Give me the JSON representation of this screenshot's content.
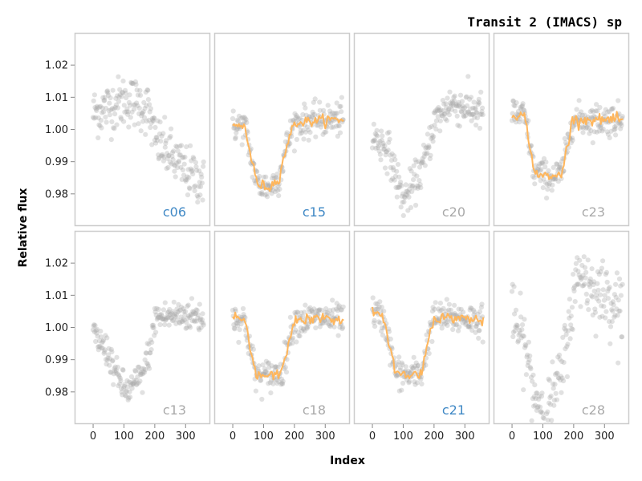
{
  "chart_data": {
    "type": "scatter",
    "title": "Transit 2 (IMACS) sp",
    "xlabel": "Index",
    "ylabel": "Relative flux",
    "xlim": [
      -60,
      380
    ],
    "ylim": [
      0.97,
      1.03
    ],
    "xticks": [
      0,
      100,
      200,
      300
    ],
    "yticks": [
      0.98,
      0.99,
      1.0,
      1.01,
      1.02
    ],
    "x_tick_labels": [
      "0",
      "100",
      "200",
      "300"
    ],
    "y_tick_labels": [
      "0.98",
      "0.99",
      "1.00",
      "1.01",
      "1.02"
    ],
    "layout": "2x4 grid of small multiples, shared axes",
    "colors": {
      "points": "#a9a9a9",
      "model_line": "#ffb65c",
      "label_highlight": "#3f88c5",
      "label_muted": "#a9a9a9",
      "panel_border": "#cccccc"
    },
    "panels": [
      {
        "label": "c06",
        "highlight": true,
        "model": false,
        "trend": [
          [
            0,
            1.005
          ],
          [
            50,
            1.007
          ],
          [
            100,
            1.009
          ],
          [
            150,
            1.008
          ],
          [
            180,
            1.006
          ],
          [
            200,
            0.997
          ],
          [
            250,
            0.992
          ],
          [
            300,
            0.987
          ],
          [
            360,
            0.984
          ]
        ],
        "scatter": 0.004
      },
      {
        "label": "c15",
        "highlight": true,
        "model": true,
        "trend": [
          [
            0,
            1.001
          ],
          [
            40,
            1.001
          ],
          [
            55,
            0.993
          ],
          [
            80,
            0.983
          ],
          [
            120,
            0.982
          ],
          [
            150,
            0.985
          ],
          [
            175,
            0.995
          ],
          [
            200,
            1.002
          ],
          [
            300,
            1.003
          ],
          [
            360,
            1.003
          ]
        ],
        "scatter": 0.0025
      },
      {
        "label": "c20",
        "highlight": false,
        "model": false,
        "trend": [
          [
            0,
            0.998
          ],
          [
            50,
            0.994
          ],
          [
            100,
            0.978
          ],
          [
            130,
            0.982
          ],
          [
            170,
            0.99
          ],
          [
            200,
            1.002
          ],
          [
            250,
            1.008
          ],
          [
            300,
            1.007
          ],
          [
            360,
            1.005
          ]
        ],
        "scatter": 0.003
      },
      {
        "label": "c23",
        "highlight": false,
        "model": true,
        "trend": [
          [
            0,
            1.005
          ],
          [
            40,
            1.004
          ],
          [
            55,
            0.997
          ],
          [
            70,
            0.987
          ],
          [
            120,
            0.985
          ],
          [
            160,
            0.986
          ],
          [
            180,
            0.995
          ],
          [
            195,
            1.003
          ],
          [
            300,
            1.003
          ],
          [
            360,
            1.003
          ]
        ],
        "scatter": 0.0025
      },
      {
        "label": "c13",
        "highlight": false,
        "model": false,
        "trend": [
          [
            0,
            0.998
          ],
          [
            50,
            0.992
          ],
          [
            80,
            0.984
          ],
          [
            110,
            0.98
          ],
          [
            160,
            0.985
          ],
          [
            190,
            0.995
          ],
          [
            200,
            1.003
          ],
          [
            300,
            1.004
          ],
          [
            360,
            1.003
          ]
        ],
        "scatter": 0.0025
      },
      {
        "label": "c18",
        "highlight": false,
        "model": true,
        "trend": [
          [
            0,
            1.003
          ],
          [
            40,
            1.002
          ],
          [
            55,
            0.994
          ],
          [
            75,
            0.985
          ],
          [
            120,
            0.985
          ],
          [
            160,
            0.986
          ],
          [
            185,
            0.997
          ],
          [
            200,
            1.002
          ],
          [
            300,
            1.003
          ],
          [
            360,
            1.002
          ]
        ],
        "scatter": 0.0025
      },
      {
        "label": "c21",
        "highlight": true,
        "model": true,
        "trend": [
          [
            0,
            1.005
          ],
          [
            40,
            1.002
          ],
          [
            55,
            0.995
          ],
          [
            75,
            0.986
          ],
          [
            120,
            0.985
          ],
          [
            160,
            0.986
          ],
          [
            185,
            0.998
          ],
          [
            200,
            1.003
          ],
          [
            300,
            1.003
          ],
          [
            360,
            1.002
          ]
        ],
        "scatter": 0.0025
      },
      {
        "label": "c28",
        "highlight": false,
        "model": false,
        "trend": [
          [
            0,
            1.003
          ],
          [
            40,
            0.995
          ],
          [
            70,
            0.98
          ],
          [
            110,
            0.973
          ],
          [
            160,
            0.985
          ],
          [
            190,
            1.005
          ],
          [
            220,
            1.018
          ],
          [
            260,
            1.012
          ],
          [
            300,
            1.01
          ],
          [
            360,
            1.007
          ]
        ],
        "scatter": 0.005
      }
    ]
  }
}
